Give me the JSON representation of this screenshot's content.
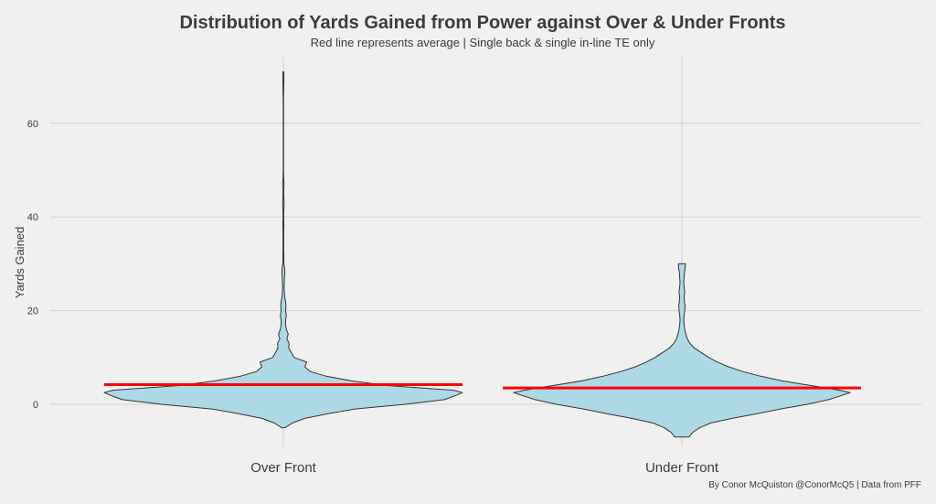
{
  "chart_data": {
    "type": "violin",
    "title": "Distribution of Yards Gained from Power against Over & Under Fronts",
    "subtitle": "Red line represents average | Single back & single in-line TE only",
    "ylabel": "Yards Gained",
    "xlabel": "",
    "caption": "By Conor McQuiston @ConorMcQ5 | Data from PFF",
    "categories": [
      "Over Front",
      "Under Front"
    ],
    "ylim": [
      -7,
      71
    ],
    "yticks": [
      0,
      20,
      40,
      60
    ],
    "grid": true,
    "colors": {
      "fill": "#add8e6",
      "outline": "#333333",
      "average": "#ff0000",
      "grid": "#d2d2d2",
      "background": "#f0f0f0"
    },
    "series": [
      {
        "category": "Over Front",
        "average": 4.2,
        "min": -5,
        "max": 71,
        "density": [
          [
            -5,
            0.01
          ],
          [
            -4,
            0.05
          ],
          [
            -3,
            0.12
          ],
          [
            -2,
            0.25
          ],
          [
            -1,
            0.4
          ],
          [
            0,
            0.68
          ],
          [
            1,
            0.9
          ],
          [
            2,
            0.97
          ],
          [
            2.5,
            1.0
          ],
          [
            3,
            0.95
          ],
          [
            4,
            0.58
          ],
          [
            5,
            0.38
          ],
          [
            6,
            0.24
          ],
          [
            7,
            0.15
          ],
          [
            8,
            0.12
          ],
          [
            9,
            0.13
          ],
          [
            10,
            0.06
          ],
          [
            11,
            0.045
          ],
          [
            12,
            0.03
          ],
          [
            13,
            0.032
          ],
          [
            14,
            0.02
          ],
          [
            15,
            0.027
          ],
          [
            16,
            0.017
          ],
          [
            17,
            0.012
          ],
          [
            18,
            0.013
          ],
          [
            19,
            0.017
          ],
          [
            20,
            0.012
          ],
          [
            21,
            0.015
          ],
          [
            22,
            0.012
          ],
          [
            23,
            0.007
          ],
          [
            25,
            0.004
          ],
          [
            27,
            0.006
          ],
          [
            28,
            0.008
          ],
          [
            29,
            0.007
          ],
          [
            30,
            0.003
          ],
          [
            33,
            0.002
          ],
          [
            35,
            0.002
          ],
          [
            37,
            0.002
          ],
          [
            38,
            0.003
          ],
          [
            40,
            0.002
          ],
          [
            41,
            0.002
          ],
          [
            43,
            0.004
          ],
          [
            45,
            0.002
          ],
          [
            46,
            0.002
          ],
          [
            47,
            0.004
          ],
          [
            48,
            0.002
          ],
          [
            50,
            0.001
          ],
          [
            55,
            0.001
          ],
          [
            60,
            0.001
          ],
          [
            65,
            0.001
          ],
          [
            70,
            0.003
          ],
          [
            71,
            0.003
          ]
        ]
      },
      {
        "category": "Under Front",
        "average": 3.5,
        "min": -7,
        "max": 30,
        "density": [
          [
            -7,
            0.04
          ],
          [
            -6,
            0.06
          ],
          [
            -5,
            0.1
          ],
          [
            -4,
            0.16
          ],
          [
            -3,
            0.28
          ],
          [
            -2,
            0.42
          ],
          [
            -1,
            0.55
          ],
          [
            0,
            0.7
          ],
          [
            1,
            0.82
          ],
          [
            2,
            0.9
          ],
          [
            2.5,
            0.94
          ],
          [
            3,
            0.88
          ],
          [
            4,
            0.72
          ],
          [
            5,
            0.56
          ],
          [
            6,
            0.44
          ],
          [
            7,
            0.34
          ],
          [
            8,
            0.26
          ],
          [
            9,
            0.2
          ],
          [
            10,
            0.15
          ],
          [
            11,
            0.11
          ],
          [
            12,
            0.07
          ],
          [
            13,
            0.045
          ],
          [
            14,
            0.03
          ],
          [
            15,
            0.022
          ],
          [
            16,
            0.016
          ],
          [
            17,
            0.012
          ],
          [
            18,
            0.01
          ],
          [
            19,
            0.012
          ],
          [
            20,
            0.016
          ],
          [
            21,
            0.018
          ],
          [
            22,
            0.014
          ],
          [
            23,
            0.012
          ],
          [
            24,
            0.016
          ],
          [
            25,
            0.013
          ],
          [
            26,
            0.01
          ],
          [
            27,
            0.012
          ],
          [
            28,
            0.014
          ],
          [
            29,
            0.018
          ],
          [
            30,
            0.02
          ]
        ]
      }
    ]
  }
}
